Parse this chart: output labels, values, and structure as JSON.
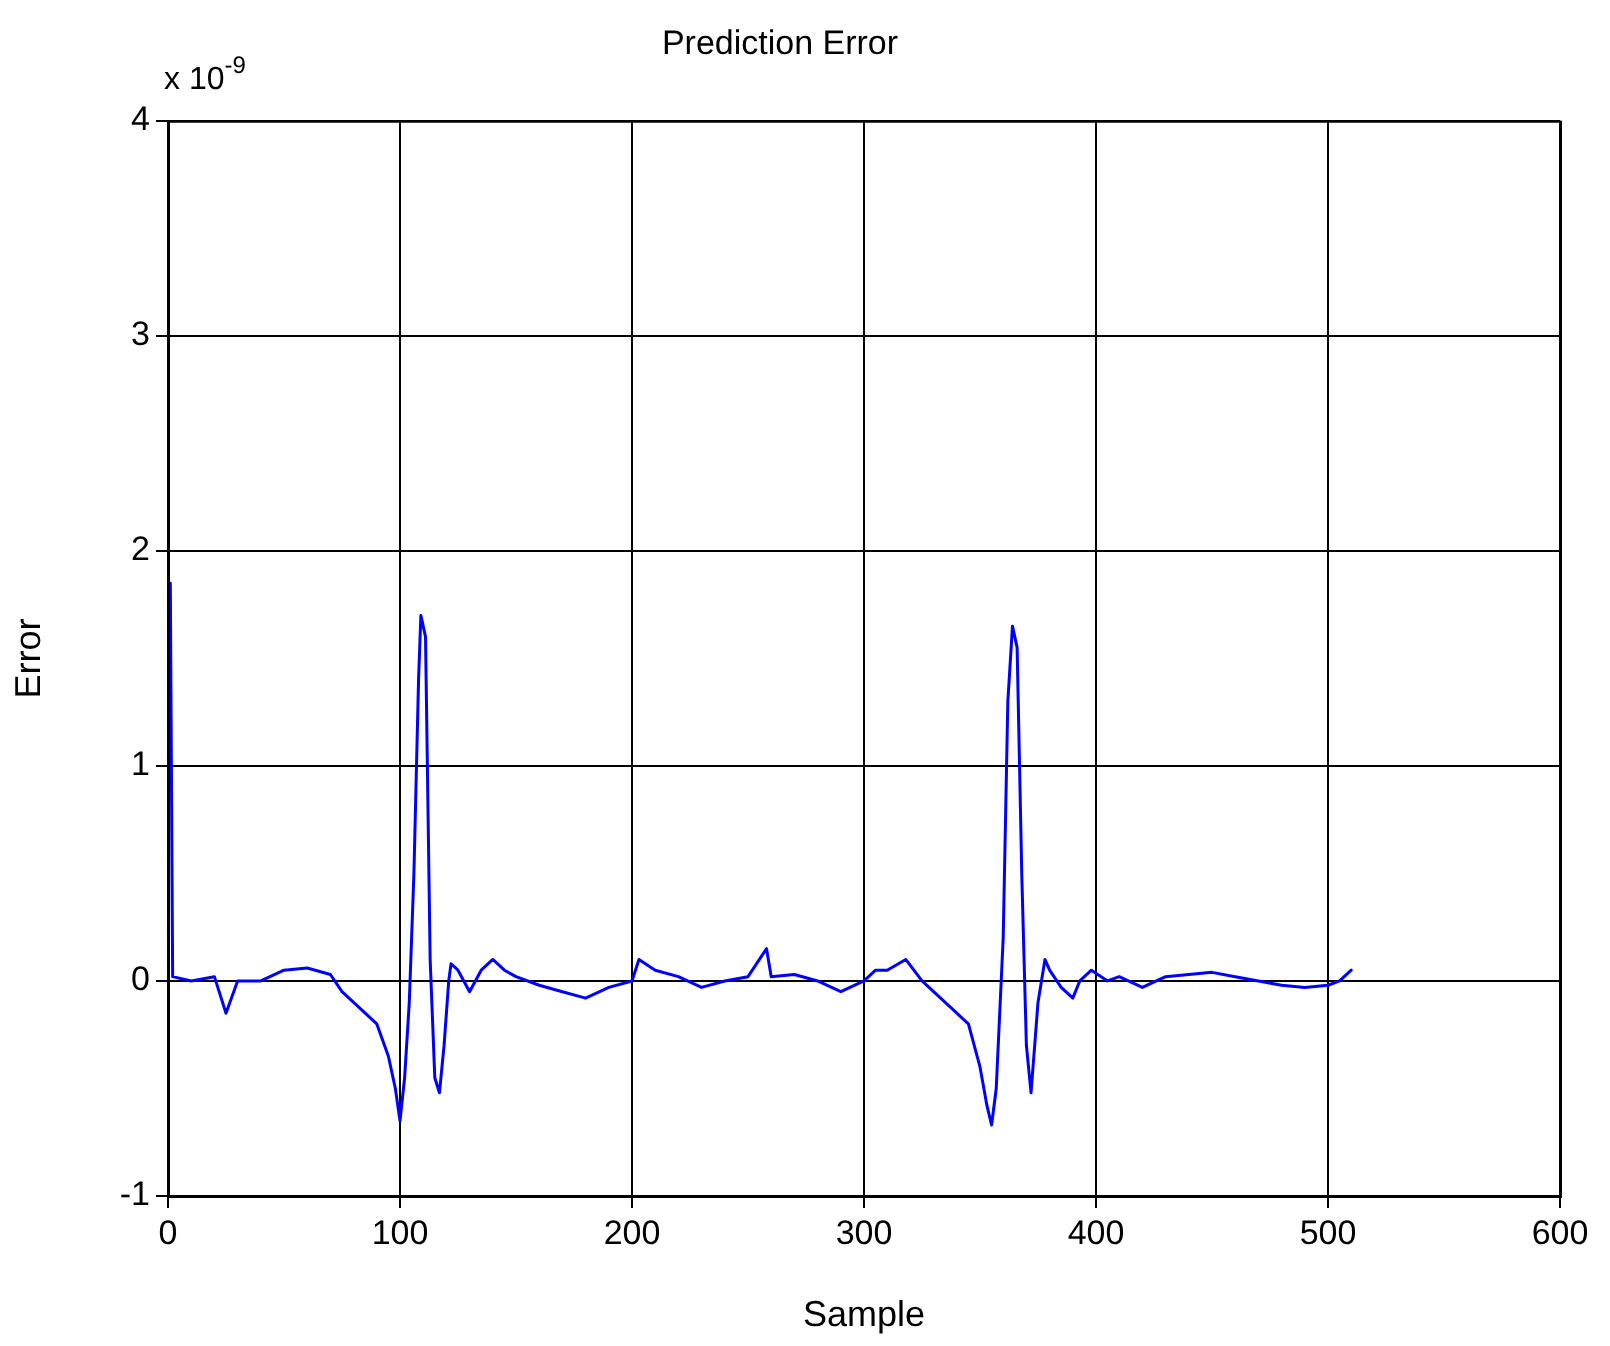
{
  "chart_data": {
    "type": "line",
    "title": "Prediction Error",
    "xlabel": "Sample",
    "ylabel": "Error",
    "annotations": [
      "x 10$^{-9}$"
    ],
    "xlim": [
      0,
      600
    ],
    "xticks": [
      0,
      100,
      200,
      300,
      400,
      500,
      600
    ],
    "ylim": [
      -1,
      4
    ],
    "yticks": [
      -1,
      0,
      1,
      2,
      3,
      4
    ],
    "grid": true,
    "marker": "none",
    "line_style": "solid",
    "series": [
      {
        "color": "#0000ff",
        "x": [
          1,
          2,
          10,
          20,
          25,
          30,
          40,
          50,
          60,
          70,
          75,
          80,
          85,
          90,
          95,
          98,
          100,
          102,
          104,
          106,
          108,
          109,
          111,
          113,
          115,
          117,
          119,
          121,
          122,
          125,
          130,
          135,
          140,
          145,
          150,
          160,
          170,
          180,
          190,
          200,
          203,
          210,
          220,
          230,
          240,
          250,
          258,
          260,
          270,
          280,
          290,
          300,
          305,
          310,
          318,
          325,
          330,
          335,
          340,
          345,
          350,
          353,
          355,
          357,
          360,
          362,
          364,
          366,
          368,
          370,
          372,
          375,
          378,
          380,
          385,
          390,
          393,
          398,
          405,
          410,
          420,
          430,
          440,
          450,
          460,
          470,
          480,
          490,
          500,
          505,
          510
        ],
        "values": [
          1.85,
          0.02,
          0,
          0.02,
          -0.15,
          0,
          0,
          0.05,
          0.06,
          0.03,
          -0.05,
          -0.1,
          -0.15,
          -0.2,
          -0.35,
          -0.5,
          -0.65,
          -0.45,
          -0.1,
          0.5,
          1.4,
          1.7,
          1.6,
          0.1,
          -0.45,
          -0.52,
          -0.3,
          0,
          0.08,
          0.05,
          -0.05,
          0.05,
          0.1,
          0.05,
          0.02,
          -0.02,
          -0.05,
          -0.08,
          -0.03,
          0,
          0.1,
          0.05,
          0.02,
          -0.03,
          0,
          0.02,
          0.15,
          0.02,
          0.03,
          0,
          -0.05,
          0,
          0.05,
          0.05,
          0.1,
          0,
          -0.05,
          -0.1,
          -0.15,
          -0.2,
          -0.4,
          -0.58,
          -0.67,
          -0.5,
          0.2,
          1.3,
          1.65,
          1.55,
          0.5,
          -0.3,
          -0.52,
          -0.1,
          0.1,
          0.05,
          -0.03,
          -0.08,
          0,
          0.05,
          0,
          0.02,
          -0.03,
          0.02,
          0.03,
          0.04,
          0.02,
          0,
          -0.02,
          -0.03,
          -0.02,
          0,
          0.05
        ]
      }
    ]
  }
}
